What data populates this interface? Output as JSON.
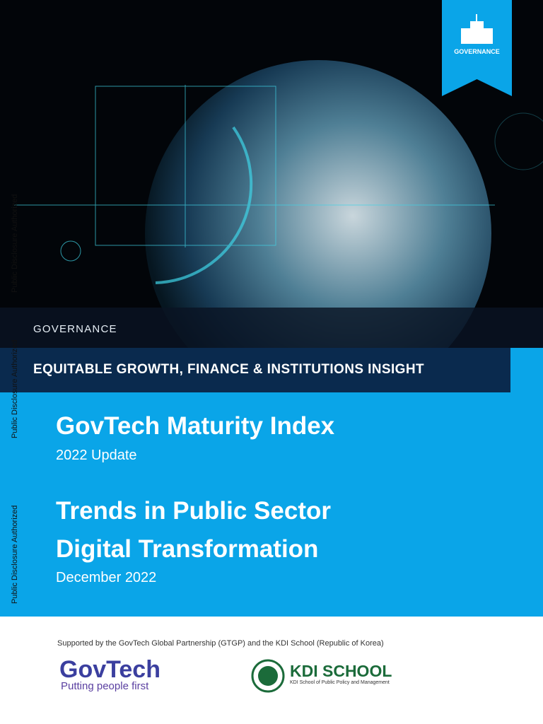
{
  "badge": {
    "label": "GOVERNANCE"
  },
  "section": "GOVERNANCE",
  "series_title": "EQUITABLE GROWTH, FINANCE & INSTITUTIONS INSIGHT",
  "title": "GovTech Maturity Index",
  "subtitle": "2022 Update",
  "heading_lines": [
    "Trends in Public Sector",
    "Digital Transformation"
  ],
  "date": "December 2022",
  "side_stamps": [
    "Public Disclosure Authorized",
    "Public Disclosure Authorized",
    "Public Disclosure Authorized"
  ],
  "support_note": "Supported by the GovTech Global Partnership (GTGP) and the KDI School (Republic of Korea)",
  "logos": {
    "govtech": {
      "name": "GovTech",
      "tagline": "Putting people first"
    },
    "kdi": {
      "name": "KDI SCHOOL",
      "subtitle": "KDI School of Public Policy and Management"
    }
  }
}
